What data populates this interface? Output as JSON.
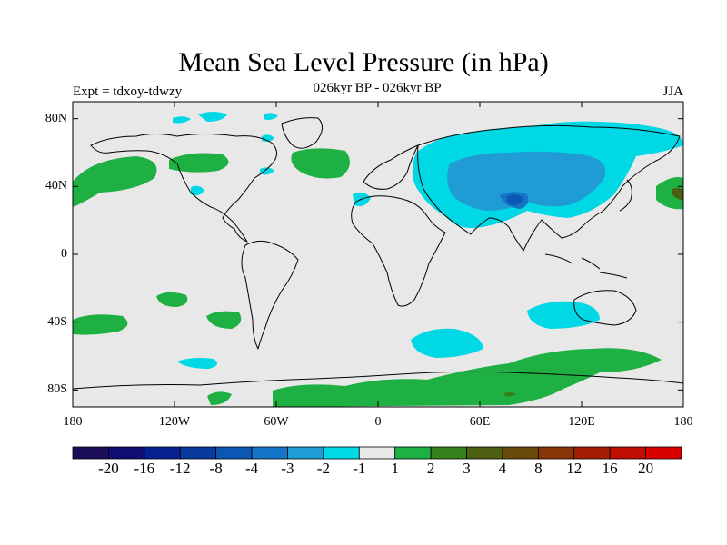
{
  "title": "Mean Sea Level Pressure (in hPa)",
  "subtitle": "026kyr BP - 026kyr BP",
  "experiment": "Expt = tdxoy-tdwzy",
  "season": "JJA",
  "map": {
    "projection": "cylindrical equidistant",
    "lon_range": [
      -180,
      180
    ],
    "lat_range": [
      -90,
      90
    ],
    "lat_ticks": [
      {
        "value": 80,
        "label": "80N"
      },
      {
        "value": 40,
        "label": "40N"
      },
      {
        "value": 0,
        "label": "0"
      },
      {
        "value": -40,
        "label": "40S"
      },
      {
        "value": -80,
        "label": "80S"
      }
    ],
    "lon_ticks": [
      {
        "value": -180,
        "label": "180"
      },
      {
        "value": -120,
        "label": "120W"
      },
      {
        "value": -60,
        "label": "60W"
      },
      {
        "value": 0,
        "label": "0"
      },
      {
        "value": 60,
        "label": "60E"
      },
      {
        "value": 120,
        "label": "120E"
      },
      {
        "value": 180,
        "label": "180"
      }
    ],
    "background_color": "#e8e8e8"
  },
  "colorbar": {
    "colors": [
      "#1c0d5a",
      "#0f0c73",
      "#06208f",
      "#093a9e",
      "#0b57b3",
      "#1474c5",
      "#1f9cd4",
      "#00d8e6",
      "#e8e8e8",
      "#1eb043",
      "#34821c",
      "#4d5f10",
      "#6a4a0b",
      "#8a3508",
      "#a41e05",
      "#c20d03",
      "#d90000"
    ],
    "labels": [
      "-20",
      "-16",
      "-12",
      "-8",
      "-4",
      "-3",
      "-2",
      "-1",
      "1",
      "2",
      "3",
      "4",
      "8",
      "12",
      "16",
      "20"
    ]
  },
  "chart_data": {
    "type": "heatmap",
    "variable": "Mean Sea Level Pressure difference",
    "units": "hPa",
    "regions": [
      {
        "level": "-3 to -2",
        "color": "#1f9cd4",
        "lon_center": 80,
        "lat_center": 42,
        "note": "broad negative anomaly over central Asia"
      },
      {
        "level": "-4 to -3",
        "color": "#1474c5",
        "lon_center": 79,
        "lat_center": 35
      },
      {
        "level": "-2 to -1",
        "color": "#00d8e6",
        "lon_center": 85,
        "lat_center": 50
      },
      {
        "level": "-2 to -1",
        "color": "#00d8e6",
        "lon_center": 50,
        "lat_center": -53
      },
      {
        "level": "-2 to -1",
        "color": "#00d8e6",
        "lon_center": 90,
        "lat_center": -34
      },
      {
        "level": "-2 to -1",
        "color": "#00d8e6",
        "lon_center": -95,
        "lat_center": -64
      },
      {
        "level": "1 to 2",
        "color": "#1eb043",
        "lon_center": -165,
        "lat_center": 50
      },
      {
        "level": "1 to 2",
        "color": "#1eb043",
        "lon_center": -30,
        "lat_center": 52
      },
      {
        "level": "1 to 2",
        "color": "#1eb043",
        "lon_center": -150,
        "lat_center": -40
      },
      {
        "level": "1 to 2",
        "color": "#1eb043",
        "lon_center": -85,
        "lat_center": -38
      },
      {
        "level": "1 to 2",
        "color": "#1eb043",
        "lon_center": 170,
        "lat_center": 38
      },
      {
        "level": "1 to 2",
        "color": "#1eb043",
        "lon_center": 60,
        "lat_center": -80,
        "note": "band over Antarctica"
      }
    ]
  }
}
